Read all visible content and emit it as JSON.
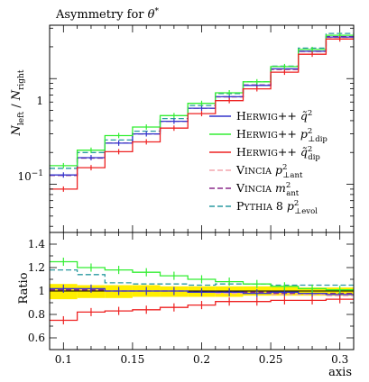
{
  "chart_data": {
    "type": "line",
    "title": "Asymmetry for θ*",
    "top_panel": {
      "ylabel": "N_left / N_right",
      "yscale": "log",
      "ylim": [
        0.035,
        3.2
      ],
      "yticks": [
        {
          "value": 1,
          "label": "1"
        },
        {
          "value": 0.1,
          "label": "10^-1"
        }
      ]
    },
    "bottom_panel": {
      "ylabel": "Ratio",
      "ylim": [
        0.5,
        1.5
      ],
      "yticks": [
        {
          "value": 0.6,
          "label": "0.6"
        },
        {
          "value": 0.8,
          "label": "0.8"
        },
        {
          "value": 1.0,
          "label": "1"
        },
        {
          "value": 1.2,
          "label": "1.2"
        },
        {
          "value": 1.4,
          "label": "1.4"
        }
      ]
    },
    "xlabel": "axis",
    "xlim": [
      0.09,
      0.31
    ],
    "xticks": [
      {
        "value": 0.1,
        "label": "0.1"
      },
      {
        "value": 0.15,
        "label": "0.15"
      },
      {
        "value": 0.2,
        "label": "0.2"
      },
      {
        "value": 0.25,
        "label": "0.25"
      },
      {
        "value": 0.3,
        "label": "0.3"
      }
    ],
    "bin_edges": [
      0.09,
      0.11,
      0.13,
      0.15,
      0.17,
      0.19,
      0.21,
      0.23,
      0.25,
      0.27,
      0.29,
      0.31
    ],
    "reference": {
      "values": [
        0.12,
        0.175,
        0.245,
        0.3,
        0.395,
        0.53,
        0.68,
        0.88,
        1.25,
        1.85,
        2.55
      ],
      "band_ratio": [
        [
          0.93,
          1.06
        ],
        [
          0.94,
          1.05
        ],
        [
          0.94,
          1.05
        ],
        [
          0.95,
          1.05
        ],
        [
          0.95,
          1.04
        ],
        [
          0.95,
          1.04
        ],
        [
          0.95,
          1.04
        ],
        [
          0.96,
          1.04
        ],
        [
          0.96,
          1.04
        ],
        [
          0.96,
          1.03
        ],
        [
          0.96,
          1.03
        ]
      ],
      "band_color": "#ffee00"
    },
    "series": [
      {
        "name": "Herwig++ q̃²",
        "color": "#3333cc",
        "dash": "solid",
        "ratio": [
          1.02,
          1.02,
          1.0,
          1.0,
          1.0,
          0.99,
          0.99,
          0.98,
          0.99,
          0.98,
          0.97
        ]
      },
      {
        "name": "Herwig++ p²⊥dip",
        "color": "#33ee33",
        "dash": "solid",
        "ratio": [
          1.25,
          1.2,
          1.18,
          1.16,
          1.13,
          1.1,
          1.08,
          1.06,
          1.04,
          1.02,
          1.01
        ]
      },
      {
        "name": "Herwig++ q̃²dip",
        "color": "#ee2222",
        "dash": "solid",
        "ratio": [
          0.75,
          0.82,
          0.83,
          0.84,
          0.86,
          0.88,
          0.91,
          0.91,
          0.92,
          0.92,
          0.93
        ]
      },
      {
        "name": "Vincia p²⊥ant",
        "color": "#f4a6ae",
        "dash": "dashed",
        "ratio": [
          1.02,
          1.01,
          1.0,
          1.0,
          1.0,
          0.99,
          0.98,
          0.98,
          0.97,
          0.97,
          0.96
        ]
      },
      {
        "name": "Vincia m²ant",
        "color": "#8a2a8a",
        "dash": "dashed",
        "ratio": [
          1.01,
          1.01,
          1.0,
          1.0,
          1.0,
          0.99,
          0.99,
          0.99,
          0.98,
          0.98,
          0.98
        ]
      },
      {
        "name": "Pythia 8 p²⊥evol",
        "color": "#2a9aa0",
        "dash": "dashed",
        "ratio": [
          1.18,
          1.14,
          1.07,
          1.06,
          1.06,
          1.05,
          1.06,
          1.06,
          1.05,
          1.05,
          1.05
        ]
      }
    ]
  },
  "labels": {
    "title_main": "Asymmetry for ",
    "title_sym": "θ",
    "title_sup": "*",
    "ylabel_N1": "N",
    "ylabel_sub1": "left",
    "ylabel_slash": " / ",
    "ylabel_N2": "N",
    "ylabel_sub2": "right",
    "tick_top_1": "1",
    "tick_top_10": "10",
    "tick_top_exp": "−1",
    "ratio_label": "Ratio",
    "x_axis_label": "axis",
    "legend": [
      {
        "gen_cap": "H",
        "gen_small": "ERWIG",
        "gen_suffix": "++",
        "var": "q̃",
        "sup": "2",
        "sub": ""
      },
      {
        "gen_cap": "H",
        "gen_small": "ERWIG",
        "gen_suffix": "++",
        "var": "p",
        "sup": "2",
        "sub": "⊥dip"
      },
      {
        "gen_cap": "H",
        "gen_small": "ERWIG",
        "gen_suffix": "++",
        "var": "q̃",
        "sup": "2",
        "sub": "dip"
      },
      {
        "gen_cap": "V",
        "gen_small": "INCIA",
        "gen_suffix": "",
        "var": "p",
        "sup": "2",
        "sub": "⊥ant"
      },
      {
        "gen_cap": "V",
        "gen_small": "INCIA",
        "gen_suffix": "",
        "var": "m",
        "sup": "2",
        "sub": "ant"
      },
      {
        "gen_cap": "P",
        "gen_small": "YTHIA",
        "gen_suffix": " 8",
        "var": "p",
        "sup": "2",
        "sub": "⊥evol"
      }
    ]
  }
}
